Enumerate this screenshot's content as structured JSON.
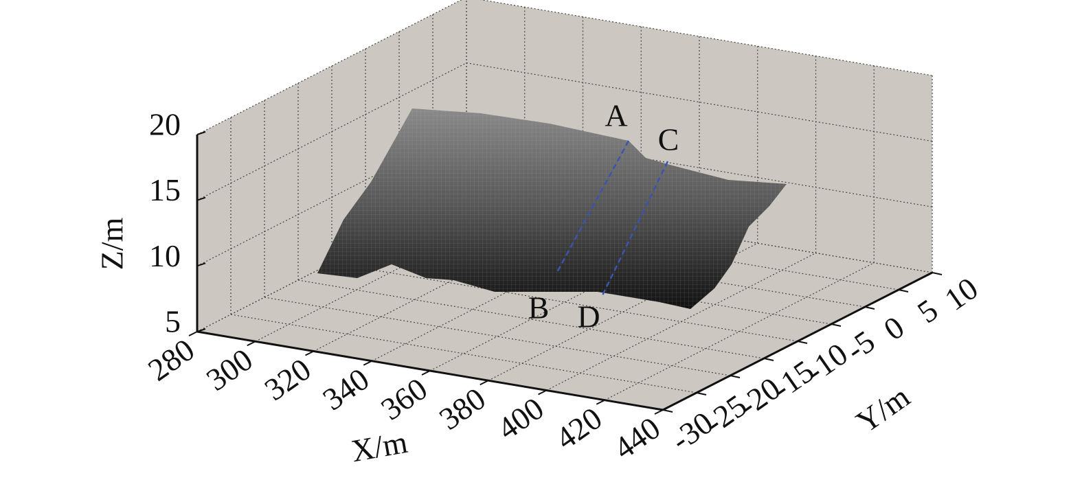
{
  "chart_data": {
    "type": "surface3d",
    "xlabel": "X/m",
    "ylabel": "Y/m",
    "zlabel": "Z/m",
    "xlim": [
      280,
      440
    ],
    "xticks": [
      280,
      300,
      320,
      340,
      360,
      380,
      400,
      420,
      440
    ],
    "ylim": [
      -30,
      10
    ],
    "yticks": [
      -30,
      -25,
      -20,
      -15,
      -10,
      -5,
      0,
      5,
      10
    ],
    "zlim": [
      5,
      20
    ],
    "zticks": [
      5,
      10,
      15,
      20
    ],
    "grid": true,
    "annotations": [
      "A",
      "B",
      "C",
      "D"
    ],
    "line_color": "#3a55b0"
  }
}
